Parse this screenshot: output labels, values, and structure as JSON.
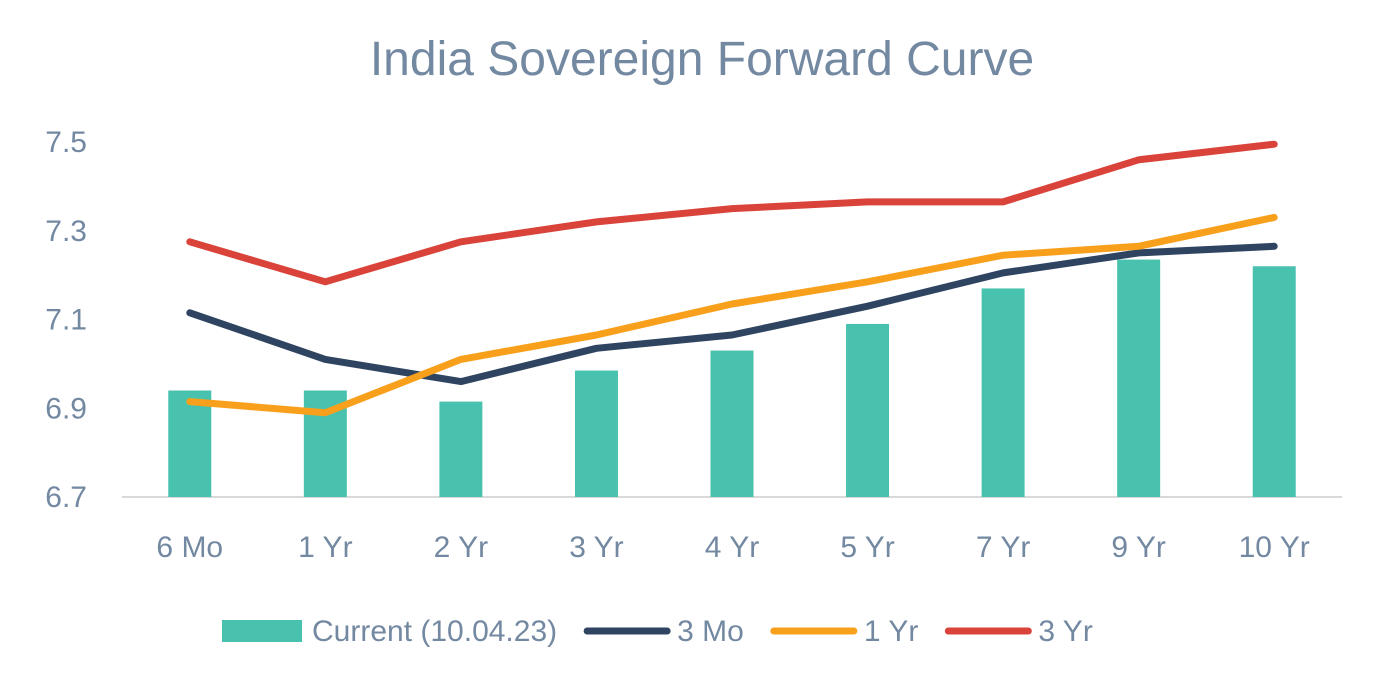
{
  "chart_data": {
    "type": "bar",
    "title": "India Sovereign Forward Curve",
    "categories": [
      "6 Mo",
      "1 Yr",
      "2 Yr",
      "3 Yr",
      "4 Yr",
      "5 Yr",
      "7 Yr",
      "9 Yr",
      "10 Yr"
    ],
    "ylim": [
      6.7,
      7.5
    ],
    "yticks": [
      "6.7",
      "6.9",
      "7.1",
      "7.3",
      "7.5"
    ],
    "grid": false,
    "legend_position": "bottom",
    "series": [
      {
        "name": "Current (10.04.23)",
        "kind": "bar",
        "color": "#48c2ae",
        "values": [
          6.94,
          6.94,
          6.915,
          6.985,
          7.03,
          7.09,
          7.17,
          7.235,
          7.22
        ]
      },
      {
        "name": "3 Mo",
        "kind": "line",
        "color": "#2f4460",
        "values": [
          7.115,
          7.01,
          6.96,
          7.035,
          7.065,
          7.13,
          7.205,
          7.25,
          7.265
        ]
      },
      {
        "name": "1 Yr",
        "kind": "line",
        "color": "#f8a01b",
        "values": [
          6.915,
          6.89,
          7.01,
          7.065,
          7.135,
          7.185,
          7.245,
          7.265,
          7.33
        ]
      },
      {
        "name": "3 Yr",
        "kind": "line",
        "color": "#d9433a",
        "values": [
          7.275,
          7.185,
          7.275,
          7.32,
          7.35,
          7.365,
          7.365,
          7.46,
          7.495
        ]
      }
    ]
  }
}
